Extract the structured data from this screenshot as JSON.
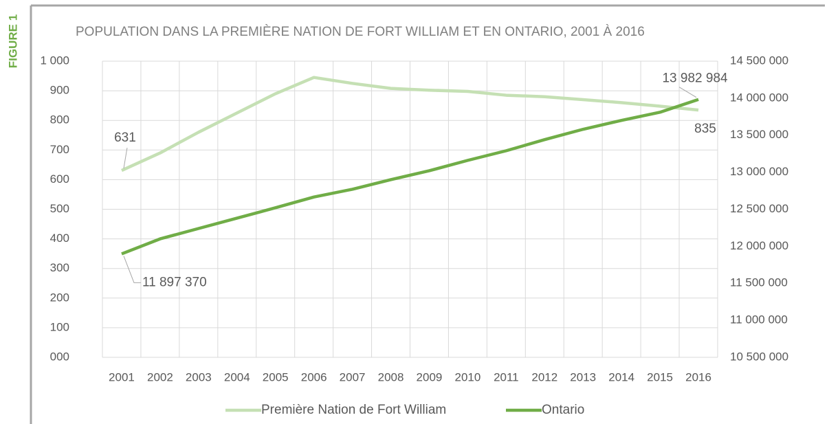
{
  "figure_label": "FIGURE 1",
  "chart_data": {
    "type": "line",
    "title": "POPULATION DANS LA PREMIÈRE NATION DE FORT WILLIAM ET EN ONTARIO, 2001 À 2016",
    "categories": [
      "2001",
      "2002",
      "2003",
      "2004",
      "2005",
      "2006",
      "2007",
      "2008",
      "2009",
      "2010",
      "2011",
      "2012",
      "2013",
      "2014",
      "2015",
      "2016"
    ],
    "series": [
      {
        "name": "Première Nation de Fort William",
        "color": "#c5e0b4",
        "values": [
          631,
          690,
          760,
          825,
          890,
          945,
          925,
          908,
          902,
          898,
          885,
          880,
          870,
          860,
          848,
          835
        ]
      },
      {
        "name": "Ontario",
        "color": "#70ad47",
        "axis": "y2",
        "values": [
          11897370,
          12100000,
          12240000,
          12380000,
          12520000,
          12665000,
          12770000,
          12900000,
          13020000,
          13160000,
          13290000,
          13440000,
          13580000,
          13700000,
          13810000,
          13982984
        ],
        "value_labels": [
          "11 897 370",
          null,
          null,
          null,
          null,
          null,
          null,
          null,
          null,
          null,
          null,
          null,
          null,
          null,
          null,
          "13 982 984"
        ]
      }
    ],
    "ylim": [
      0,
      1000
    ],
    "yticks": [
      {
        "value": 0,
        "label": "000"
      },
      100,
      200,
      300,
      400,
      500,
      600,
      700,
      800,
      900,
      {
        "value": 1000,
        "label": "1 000"
      }
    ],
    "y2lim": [
      10500000,
      14500000
    ],
    "y2ticks": [
      {
        "value": 10500000,
        "label": "10 500 000"
      },
      {
        "value": 11000000,
        "label": "11 000 000"
      },
      {
        "value": 11500000,
        "label": "11 500 000"
      },
      {
        "value": 12000000,
        "label": "12 000 000"
      },
      {
        "value": 12500000,
        "label": "12 500 000"
      },
      {
        "value": 13000000,
        "label": "13 000 000"
      },
      {
        "value": 13500000,
        "label": "13 500 000"
      },
      {
        "value": 14000000,
        "label": "14 000 000"
      },
      {
        "value": 14500000,
        "label": "14 500 000"
      }
    ],
    "grid": true,
    "legend": "bottom"
  }
}
